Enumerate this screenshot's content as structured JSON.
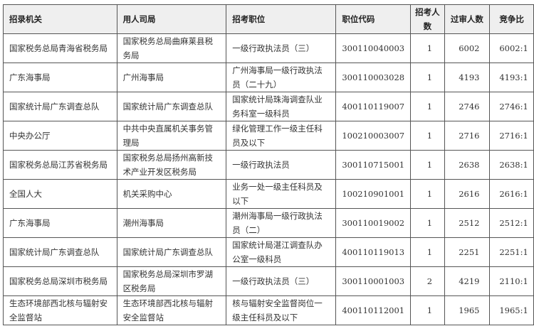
{
  "headers": [
    "招录机关",
    "用人司局",
    "招考职位",
    "职位代码",
    "招考人数",
    "过审人数",
    "竞争比"
  ],
  "rows": [
    [
      "国家税务总局青海省税务局",
      "国家税务总局曲麻莱县税务局",
      "一级行政执法员（三）",
      "300110040003",
      "1",
      "6002",
      "6002:1"
    ],
    [
      "广东海事局",
      "广州海事局",
      "广州海事局一级行政执法员（二十九）",
      "300110003028",
      "1",
      "4193",
      "4193:1"
    ],
    [
      "国家统计局广东调查总队",
      "国家统计局广东调查总队",
      "国家统计局珠海调查队业务科室一级科员",
      "400110119007",
      "1",
      "2746",
      "2746:1"
    ],
    [
      "中央办公厅",
      "中共中央直属机关事务管理局",
      "绿化管理工作一级主任科员及以下",
      "100210003007",
      "1",
      "2716",
      "2716:1"
    ],
    [
      "国家税务总局江苏省税务局",
      "国家税务总局扬州高新技术产业开发区税务局",
      "一级行政执法员",
      "300110715001",
      "1",
      "2638",
      "2638:1"
    ],
    [
      "全国人大",
      "机关采购中心",
      "业务一处一级主任科员及以下",
      "100210901001",
      "1",
      "2616",
      "2616:1"
    ],
    [
      "广东海事局",
      "潮州海事局",
      "潮州海事局一级行政执法员（二）",
      "300110019002",
      "1",
      "2512",
      "2512:1"
    ],
    [
      "国家统计局广东调查总队",
      "国家统计局广东调查总队",
      "国家统计局湛江调查队办公室一级科员",
      "400110119013",
      "1",
      "2251",
      "2251:1"
    ],
    [
      "国家税务总局深圳市税务局",
      "国家税务总局深圳市罗湖区税务局",
      "一级行政执法员（三）",
      "300110001003",
      "2",
      "4219",
      "2110:1"
    ],
    [
      "生态环境部西北核与辐射安全监督站",
      "生态环境部西北核与辐射安全监督站",
      "核与辐射安全监督岗位一级主任科员及以下",
      "400110112001",
      "1",
      "1965",
      "1965:1"
    ]
  ]
}
